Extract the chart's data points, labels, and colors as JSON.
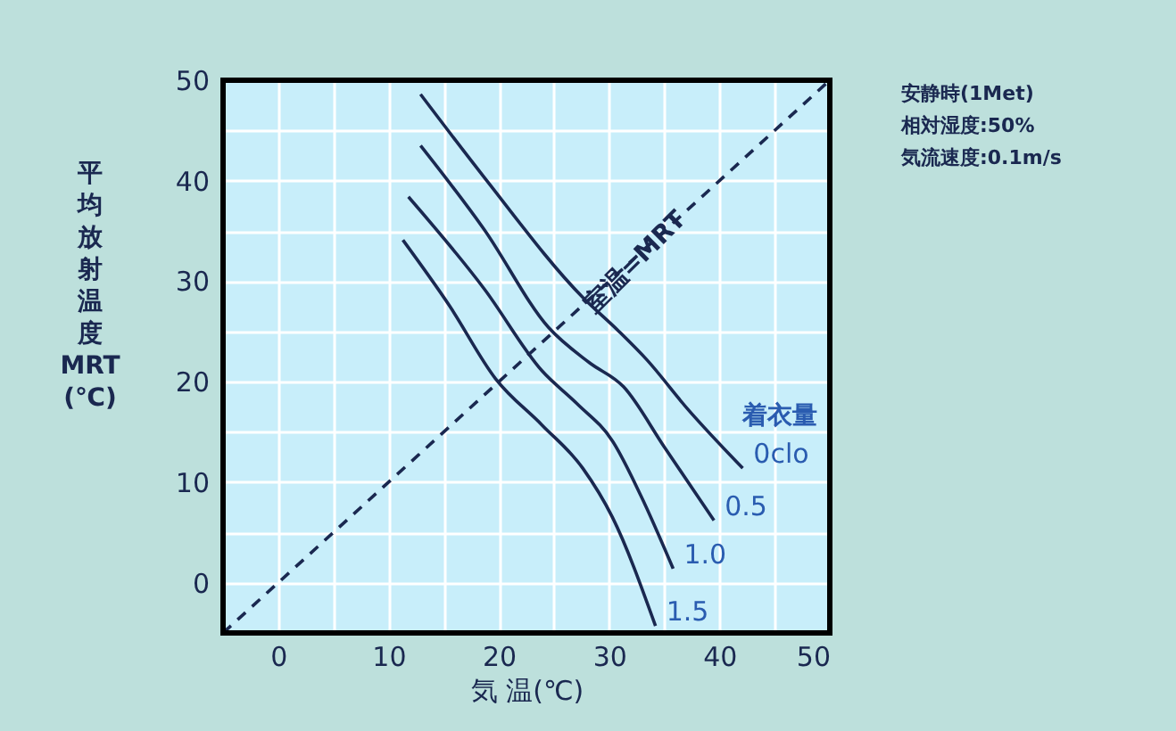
{
  "chart_data": {
    "type": "line",
    "xlabel": "気 温(℃)",
    "ylabel": "平均放射温度\nMRT\n(℃)",
    "xlim": [
      -5,
      50
    ],
    "ylim": [
      -5,
      50
    ],
    "xticks": [
      0,
      {
        "value": 5,
        "label": null
      },
      10,
      {
        "value": 15,
        "label": null
      },
      20,
      {
        "value": 25,
        "label": null
      },
      30,
      {
        "value": 35,
        "label": null
      },
      40,
      {
        "value": 45,
        "label": null
      },
      50
    ],
    "yticks": [
      0,
      {
        "value": 5,
        "label": null
      },
      10,
      {
        "value": 15,
        "label": null
      },
      20,
      {
        "value": 25,
        "label": null
      },
      30,
      {
        "value": 35,
        "label": null
      },
      40,
      {
        "value": 45,
        "label": null
      },
      50
    ],
    "grid": true,
    "marker": "none",
    "legend_title": "着衣量",
    "series": [
      {
        "name": "0clo",
        "color": "#1a2850",
        "line_style": "solid",
        "x": [
          12.9,
          18.7,
          27.6,
          30.8,
          33.4,
          37.1,
          42.1
        ],
        "values": [
          48.6,
          40.3,
          28.4,
          25.1,
          22.2,
          17.3,
          11.4
        ]
      },
      {
        "name": "0.5",
        "color": "#1a2850",
        "line_style": "solid",
        "x": [
          12.9,
          18.7,
          24.5,
          28.2,
          31.3,
          35,
          39.5
        ],
        "values": [
          43.5,
          35.1,
          25.4,
          21.9,
          19.5,
          13.5,
          6.2
        ]
      },
      {
        "name": "1.0",
        "color": "#1a2850",
        "line_style": "solid",
        "x": [
          11.8,
          18.7,
          23.9,
          27.1,
          30.3,
          32.9,
          35.8
        ],
        "values": [
          38.4,
          29.2,
          21.1,
          17.8,
          14.1,
          8.6,
          1.4
        ]
      },
      {
        "name": "1.5",
        "color": "#1a2850",
        "line_style": "solid",
        "x": [
          11.3,
          15.5,
          19.7,
          23.9,
          27.6,
          30.3,
          34.2
        ],
        "values": [
          34.1,
          27.6,
          20.3,
          15.7,
          11.4,
          6.5,
          -4.3
        ]
      },
      {
        "color": "#1a2850",
        "line_style": "dashed",
        "x": [
          -5,
          50
        ],
        "values": [
          -5,
          50
        ]
      }
    ],
    "annotations": [
      {
        "text": "室温=MRT",
        "x": 32.4,
        "y": 31.9
      },
      "安静時(1Met)",
      "相対湿度:50%",
      "気流速度:0.1m/s"
    ]
  }
}
